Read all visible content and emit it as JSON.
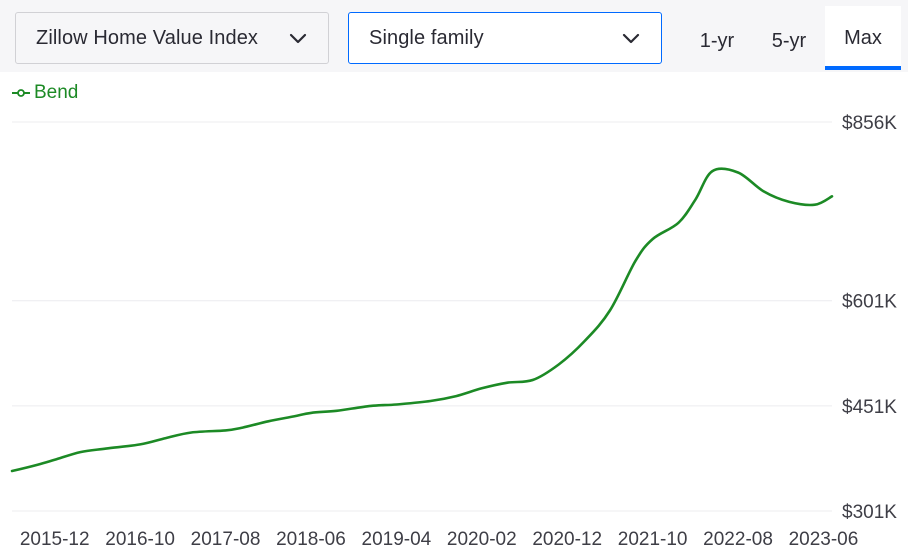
{
  "filters": {
    "metric_label": "Zillow Home Value Index",
    "home_type_label": "Single family"
  },
  "range_tabs": [
    {
      "label": "1-yr",
      "selected": false
    },
    {
      "label": "5-yr",
      "selected": false
    },
    {
      "label": "Max",
      "selected": true
    }
  ],
  "colors": {
    "accent": "#006aff",
    "series": "#1c8a25",
    "gridline": "#ececef"
  },
  "chart_data": {
    "type": "line",
    "ylim": [
      301000,
      856000
    ],
    "yticks": [
      {
        "value": 301000,
        "label": "$301K"
      },
      {
        "value": 451000,
        "label": "$451K"
      },
      {
        "value": 601000,
        "label": "$601K"
      },
      {
        "value": 856000,
        "label": "$856K"
      }
    ],
    "xticks": [
      "2015-12",
      "2016-10",
      "2017-08",
      "2018-06",
      "2019-04",
      "2020-02",
      "2020-12",
      "2021-10",
      "2022-08",
      "2023-06"
    ],
    "legend": {
      "position": "top-left"
    },
    "grid": true,
    "series": [
      {
        "name": "Bend",
        "x": [
          "2015-07",
          "2015-10",
          "2015-12",
          "2016-03",
          "2016-06",
          "2016-10",
          "2017-01",
          "2017-04",
          "2017-08",
          "2017-10",
          "2018-01",
          "2018-04",
          "2018-06",
          "2018-09",
          "2019-01",
          "2019-04",
          "2019-08",
          "2019-11",
          "2020-02",
          "2020-05",
          "2020-08",
          "2020-11",
          "2021-02",
          "2021-05",
          "2021-08",
          "2021-10",
          "2022-01",
          "2022-03",
          "2022-05",
          "2022-08",
          "2022-11",
          "2023-02",
          "2023-05",
          "2023-07"
        ],
        "y": [
          358000,
          367000,
          374000,
          385000,
          390000,
          396000,
          405000,
          413000,
          416000,
          420000,
          429000,
          436000,
          441000,
          444000,
          451000,
          453000,
          458000,
          465000,
          476000,
          484000,
          488000,
          510000,
          543000,
          587000,
          658000,
          689000,
          712000,
          745000,
          786000,
          784000,
          757000,
          742000,
          738000,
          750000
        ]
      }
    ]
  }
}
